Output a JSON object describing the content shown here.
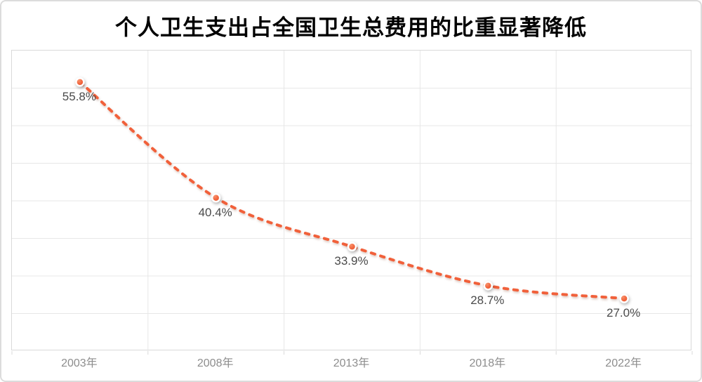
{
  "card": {
    "background": "#FFFFFF",
    "border_color": "#DCDCDC"
  },
  "chart_data": {
    "type": "line",
    "title": "个人卫生支出占全国卫生总费用的比重显著降低",
    "categories": [
      "2003年",
      "2008年",
      "2013年",
      "2018年",
      "2022年"
    ],
    "values": [
      55.8,
      40.4,
      33.9,
      28.7,
      27.0
    ],
    "data_labels": [
      "55.8%",
      "40.4%",
      "33.9%",
      "28.7%",
      "27.0%"
    ],
    "xlabel": "",
    "ylabel": "",
    "ylim": [
      20,
      60
    ],
    "y_gridline_step": 5,
    "grid": "on",
    "legend": "none",
    "line_style": "dashed",
    "smooth": true,
    "colors": {
      "line": "#F1603A",
      "marker": "#F1653D",
      "marker_highlight": "#F8916B",
      "marker_dark": "#EC5730",
      "marker_ring": "#FFFFFF",
      "grid": "#E7E7E7",
      "plot_border": "#D9D9D9",
      "tick": "#D9D9D9",
      "data_label": "#4A4A4A",
      "axis_label": "#8D8D8D",
      "title": "#000000"
    }
  }
}
